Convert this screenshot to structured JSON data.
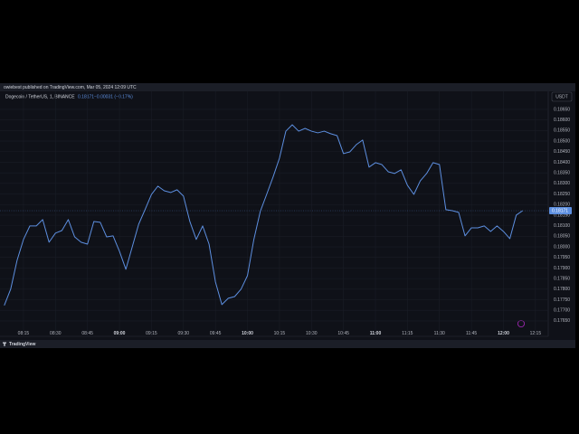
{
  "header": {
    "publisher": "owiebest published on TradingView.com, Mar 05, 2024 12:09 UTC"
  },
  "symbol": {
    "name": "Dogecoin / TetherUS, 1, BINANCE",
    "change": "−0.00031 (−0.17%)",
    "currency": "USDT"
  },
  "footer": {
    "brand": "TradingView"
  },
  "chart_data": {
    "type": "line",
    "grid": true,
    "x": [
      "08:06",
      "08:09",
      "08:12",
      "08:15",
      "08:18",
      "08:21",
      "08:24",
      "08:27",
      "08:30",
      "08:33",
      "08:36",
      "08:39",
      "08:42",
      "08:45",
      "08:48",
      "08:51",
      "08:54",
      "08:57",
      "09:00",
      "09:03",
      "09:06",
      "09:09",
      "09:12",
      "09:15",
      "09:18",
      "09:21",
      "09:24",
      "09:27",
      "09:30",
      "09:33",
      "09:36",
      "09:39",
      "09:42",
      "09:45",
      "09:48",
      "09:51",
      "09:54",
      "09:57",
      "10:00",
      "10:03",
      "10:06",
      "10:09",
      "10:12",
      "10:15",
      "10:18",
      "10:21",
      "10:24",
      "10:27",
      "10:30",
      "10:33",
      "10:36",
      "10:39",
      "10:42",
      "10:45",
      "10:48",
      "10:51",
      "10:54",
      "10:57",
      "11:00",
      "11:03",
      "11:06",
      "11:09",
      "11:12",
      "11:15",
      "11:18",
      "11:21",
      "11:24",
      "11:27",
      "11:30",
      "11:33",
      "11:36",
      "11:39",
      "11:42",
      "11:45",
      "11:48",
      "11:51",
      "11:54",
      "11:57",
      "12:00",
      "12:03",
      "12:06",
      "12:09"
    ],
    "series": [
      {
        "name": "Dogecoin / TetherUS",
        "color": "#5d8fe0",
        "values": [
          0.17723,
          0.178,
          0.17936,
          0.18035,
          0.18099,
          0.18099,
          0.18129,
          0.18022,
          0.18065,
          0.18077,
          0.18129,
          0.18047,
          0.18022,
          0.18013,
          0.1812,
          0.18116,
          0.18047,
          0.18052,
          0.17979,
          0.17894,
          0.18,
          0.18107,
          0.18176,
          0.18248,
          0.18287,
          0.18265,
          0.18257,
          0.1827,
          0.1824,
          0.1812,
          0.18035,
          0.18099,
          0.18013,
          0.17834,
          0.17727,
          0.17757,
          0.17765,
          0.178,
          0.17864,
          0.18035,
          0.18167,
          0.18248,
          0.1833,
          0.18419,
          0.18547,
          0.18577,
          0.18547,
          0.1856,
          0.18547,
          0.18539,
          0.18547,
          0.18535,
          0.18526,
          0.18441,
          0.18449,
          0.18483,
          0.18505,
          0.18377,
          0.18398,
          0.18389,
          0.18355,
          0.18347,
          0.18364,
          0.18291,
          0.18248,
          0.18312,
          0.18347,
          0.18398,
          0.18389,
          0.18176,
          0.18171,
          0.18163,
          0.18052,
          0.1809,
          0.1809,
          0.18099,
          0.18073,
          0.18099,
          0.18073,
          0.18039,
          0.1815,
          0.18171
        ]
      }
    ],
    "xlim": [
      "08:04",
      "12:21"
    ],
    "xticks": [
      "08:15",
      "08:30",
      "08:45",
      "09:00",
      "09:15",
      "09:30",
      "09:45",
      "10:00",
      "10:15",
      "10:30",
      "10:45",
      "11:00",
      "11:15",
      "11:30",
      "11:45",
      "12:00",
      "12:15"
    ],
    "ylim": [
      0.17577,
      0.18684
    ],
    "yticks": [
      {
        "value": 0.1765,
        "label": "0.17650"
      },
      {
        "value": 0.177,
        "label": "0.17700"
      },
      {
        "value": 0.1775,
        "label": "0.17750"
      },
      {
        "value": 0.178,
        "label": "0.17800"
      },
      {
        "value": 0.1785,
        "label": "0.17850"
      },
      {
        "value": 0.179,
        "label": "0.17900"
      },
      {
        "value": 0.1795,
        "label": "0.17950"
      },
      {
        "value": 0.18,
        "label": "0.18000"
      },
      {
        "value": 0.1805,
        "label": "0.18050"
      },
      {
        "value": 0.181,
        "label": "0.18100"
      },
      {
        "value": 0.1815,
        "label": "0.18150"
      },
      {
        "value": 0.182,
        "label": "0.18200"
      },
      {
        "value": 0.1825,
        "label": "0.18250"
      },
      {
        "value": 0.183,
        "label": "0.18300"
      },
      {
        "value": 0.1835,
        "label": "0.18350"
      },
      {
        "value": 0.184,
        "label": "0.18400"
      },
      {
        "value": 0.1845,
        "label": "0.18450"
      },
      {
        "value": 0.185,
        "label": "0.18500"
      },
      {
        "value": 0.1855,
        "label": "0.18550"
      },
      {
        "value": 0.186,
        "label": "0.18600"
      },
      {
        "value": 0.1865,
        "label": "0.18650"
      }
    ]
  }
}
